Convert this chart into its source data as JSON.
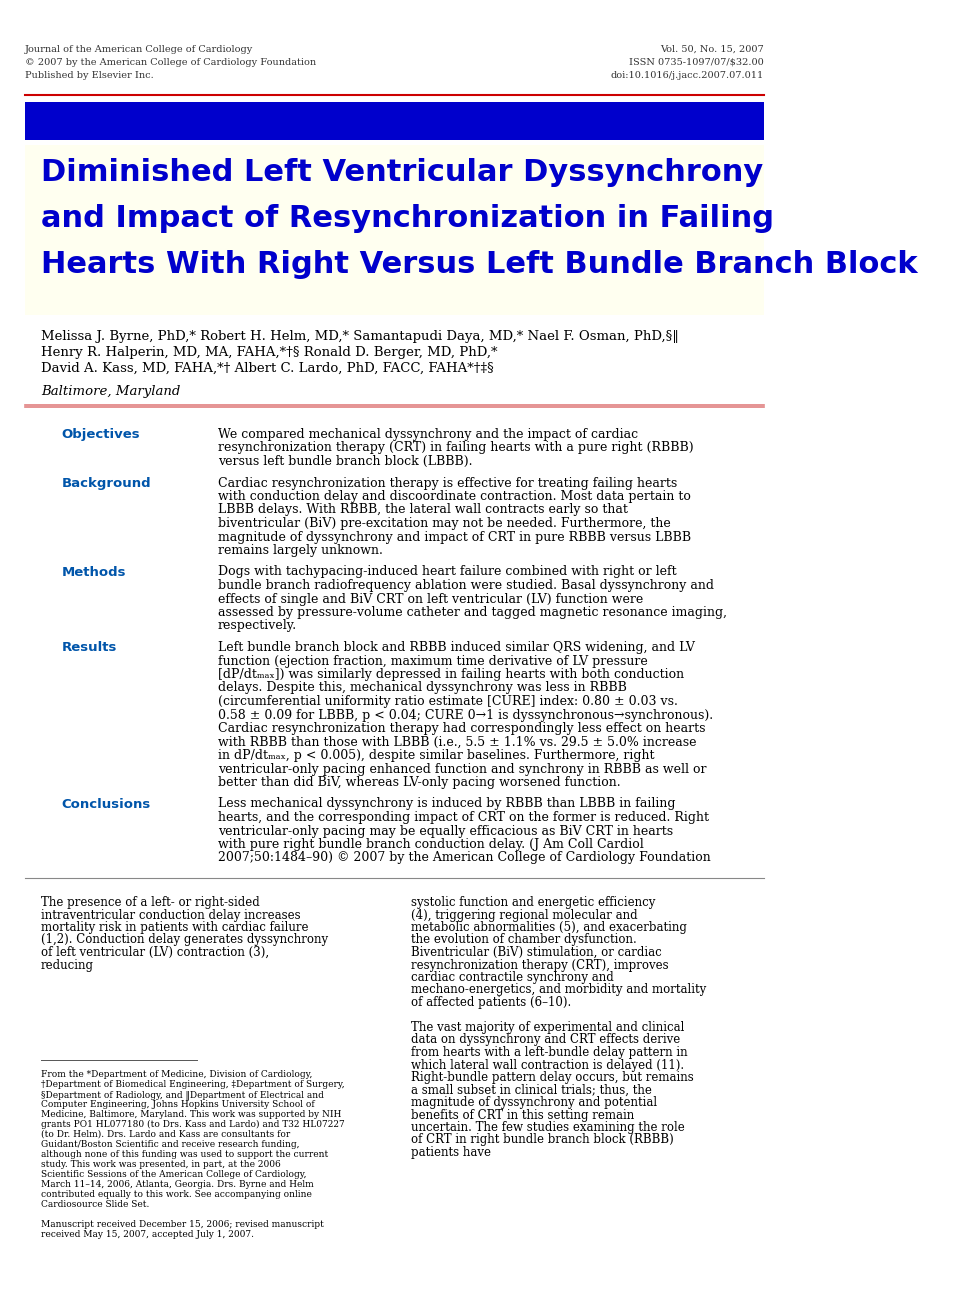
{
  "header_left": [
    "Journal of the American College of Cardiology",
    "© 2007 by the American College of Cardiology Foundation",
    "Published by Elsevier Inc."
  ],
  "header_right": [
    "Vol. 50, No. 15, 2007",
    "ISSN 0735-1097/07/$32.00",
    "doi:10.1016/j.jacc.2007.07.011"
  ],
  "blue_bar_color": "#0000CC",
  "red_line_color": "#CC0000",
  "bg_color": "#FFFFF0",
  "title_color": "#0000CC",
  "title_lines": [
    "Diminished Left Ventricular Dyssynchrony",
    "and Impact of Resynchronization in Failing",
    "Hearts With Right Versus Left Bundle Branch Block"
  ],
  "authors": "Melissa J. Byrne, PhD,* Robert H. Helm, MD,* Samantapudi Daya, MD,* Nael F. Osman, PhD,§‖\nHenry R. Halperin, MD, MA, FAHA,*†§ Ronald D. Berger, MD, PhD,*\nDavid A. Kass, MD, FAHA,*† Albert C. Lardo, PhD, FACC, FAHA*†‡§",
  "location": "Baltimore, Maryland",
  "section_label_color": "#0055AA",
  "sections": [
    {
      "label": "Objectives",
      "text": "We compared mechanical dyssynchrony and the impact of cardiac resynchronization therapy (CRT) in failing hearts with a pure right (RBBB) versus left bundle branch block (LBBB)."
    },
    {
      "label": "Background",
      "text": "Cardiac resynchronization therapy is effective for treating failing hearts with conduction delay and discoordinate contraction. Most data pertain to LBBB delays. With RBBB, the lateral wall contracts early so that biventricular (BiV) pre-excitation may not be needed. Furthermore, the magnitude of dyssynchrony and impact of CRT in pure RBBB versus LBBB remains largely unknown."
    },
    {
      "label": "Methods",
      "text": "Dogs with tachypacing-induced heart failure combined with right or left bundle branch radiofrequency ablation were studied. Basal dyssynchrony and effects of single and BiV CRT on left ventricular (LV) function were assessed by pressure-volume catheter and tagged magnetic resonance imaging, respectively."
    },
    {
      "label": "Results",
      "text": "Left bundle branch block and RBBB induced similar QRS widening, and LV function (ejection fraction, maximum time derivative of LV pressure [dP/dtₘₐₓ]) was similarly depressed in failing hearts with both conduction delays. Despite this, mechanical dyssynchrony was less in RBBB (circumferential uniformity ratio estimate [CURE] index: 0.80 ± 0.03 vs. 0.58 ± 0.09 for LBBB, p < 0.04; CURE 0→1 is dyssynchronous→synchronous). Cardiac resynchronization therapy had correspondingly less effect on hearts with RBBB than those with LBBB (i.e., 5.5 ± 1.1% vs. 29.5 ± 5.0% increase in dP/dtₘₐₓ, p < 0.005), despite similar baselines. Furthermore, right ventricular-only pacing enhanced function and synchrony in RBBB as well or better than did BiV, whereas LV-only pacing worsened function."
    },
    {
      "label": "Conclusions",
      "text": "Less mechanical dyssynchrony is induced by RBBB than LBBB in failing hearts, and the corresponding impact of CRT on the former is reduced. Right ventricular-only pacing may be equally efficacious as BiV CRT in hearts with pure right bundle branch conduction delay.    (J Am Coll Cardiol 2007;50:1484–90) © 2007 by the American College of Cardiology Foundation"
    }
  ],
  "body_col1": "The presence of a left- or right-sided intraventricular conduction delay increases mortality risk in patients with cardiac failure (1,2). Conduction delay generates dyssynchrony of left ventricular (LV) contraction (3), reducing",
  "body_col2": "systolic function and energetic efficiency (4), triggering regional molecular and metabolic abnormalities (5), and exacerbating the evolution of chamber dysfunction. Biventricular (BiV) stimulation, or cardiac resynchronization therapy (CRT), improves cardiac contractile synchrony and mechano-energetics, and morbidity and mortality of affected patients (6–10).\n\nThe vast majority of experimental and clinical data on dyssynchrony and CRT effects derive from hearts with a left-bundle delay pattern in which lateral wall contraction is delayed (11). Right-bundle pattern delay occurs, but remains a small subset in clinical trials; thus, the magnitude of dyssynchrony and potential benefits of CRT in this setting remain uncertain. The few studies examining the role of CRT in right bundle branch block (RBBB) patients have",
  "footnote": "From the *Department of Medicine, Division of Cardiology, †Department of Biomedical Engineering, ‡Department of Surgery, §Department of Radiology, and ‖Department of Electrical and Computer Engineering, Johns Hopkins University School of Medicine, Baltimore, Maryland. This work was supported by NIH grants PO1 HL077180 (to Drs. Kass and Lardo) and T32 HL07227 (to Dr. Helm). Drs. Lardo and Kass are consultants for Guidant/Boston Scientific and receive research funding, although none of this funding was used to support the current study. This work was presented, in part, at the 2006 Scientific Sessions of the American College of Cardiology, March 11–14, 2006, Atlanta, Georgia. Drs. Byrne and Helm contributed equally to this work. See accompanying online Cardiosource Slide Set.\n\nManuscript received December 15, 2006; revised manuscript received May 15, 2007, accepted July 1, 2007."
}
